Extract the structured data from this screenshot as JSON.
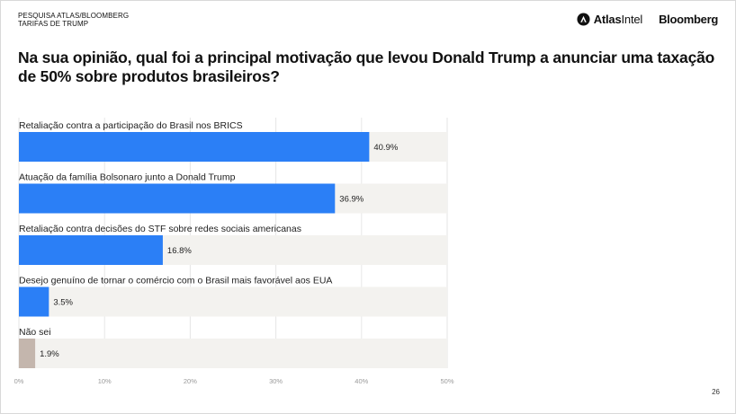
{
  "header": {
    "kicker_line1": "PESQUISA ATLAS/BLOOMBERG",
    "kicker_line2": "TARIFAS DE TRUMP",
    "logo_atlas_bold": "Atlas",
    "logo_atlas_light": "Intel",
    "logo_bloomberg": "Bloomberg"
  },
  "page_number": "26",
  "colors": {
    "bar_primary": "#2b7ff6",
    "bar_neutral": "#c4b6ad",
    "track": "#f3f2ef",
    "grid": "#e6e6e6",
    "tick_text": "#9a9a9a"
  },
  "chart_data": {
    "type": "bar",
    "orientation": "horizontal",
    "title": "Na sua opinião, qual foi a principal motivação que levou Donald Trump a anunciar uma taxação de 50% sobre produtos brasileiros?",
    "categories": [
      "Retaliação contra a participação do Brasil nos BRICS",
      "Atuação da família Bolsonaro junto a Donald Trump",
      "Retaliação contra decisões do STF sobre redes sociais americanas",
      "Desejo genuíno de tornar o comércio com o Brasil mais favorável aos EUA",
      "Não sei"
    ],
    "values": [
      40.9,
      36.9,
      16.8,
      3.5,
      1.9
    ],
    "value_labels": [
      "40.9%",
      "36.9%",
      "16.8%",
      "3.5%",
      "1.9%"
    ],
    "bar_color_keys": [
      "bar_primary",
      "bar_primary",
      "bar_primary",
      "bar_primary",
      "bar_neutral"
    ],
    "xlim": [
      0,
      50
    ],
    "xticks": [
      0,
      10,
      20,
      30,
      40,
      50
    ],
    "xtick_labels": [
      "0%",
      "10%",
      "20%",
      "30%",
      "40%",
      "50%"
    ],
    "xlabel": "",
    "ylabel": "",
    "grid": true
  }
}
